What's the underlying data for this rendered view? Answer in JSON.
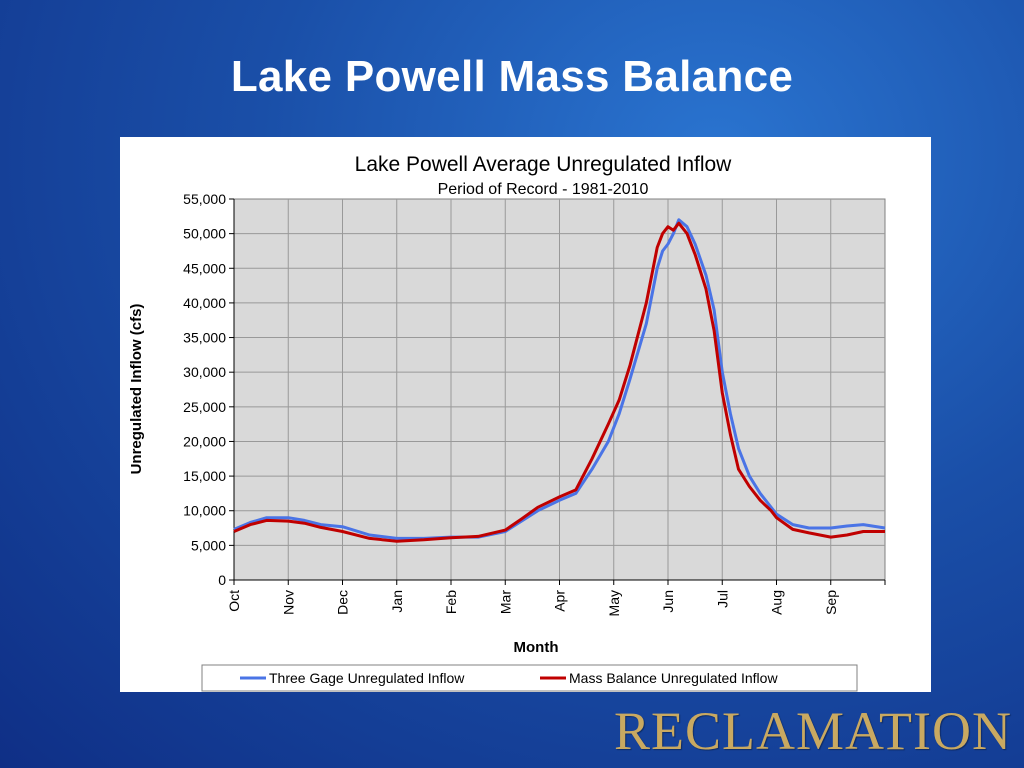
{
  "slide": {
    "title": "Lake Powell Mass Balance",
    "brand": "RECLAMATION"
  },
  "chart_data": {
    "type": "line",
    "title": "Lake Powell Average Unregulated Inflow",
    "subtitle": "Period of Record - 1981-2010",
    "xlabel": "Month",
    "ylabel": "Unregulated  Inflow (cfs)",
    "ylim": [
      0,
      55000
    ],
    "yticks": [
      0,
      5000,
      10000,
      15000,
      20000,
      25000,
      30000,
      35000,
      40000,
      45000,
      50000,
      55000
    ],
    "ytick_labels": [
      "0",
      "5,000",
      "10,000",
      "15,000",
      "20,000",
      "25,000",
      "30,000",
      "35,000",
      "40,000",
      "45,000",
      "50,000",
      "55,000"
    ],
    "categories": [
      "Oct",
      "Nov",
      "Dec",
      "Jan",
      "Feb",
      "Mar",
      "Apr",
      "May",
      "Jun",
      "Jul",
      "Aug",
      "Sep"
    ],
    "grid": true,
    "legend_position": "bottom",
    "colors": {
      "plot_bg": "#d9d9d9",
      "grid": "#999999"
    },
    "series": [
      {
        "name": "Three Gage Unregulated Inflow",
        "color": "#4a74e6",
        "x": [
          0,
          0.3,
          0.6,
          1.0,
          1.3,
          1.6,
          2.0,
          2.5,
          3.0,
          3.5,
          4.0,
          4.5,
          5.0,
          5.3,
          5.6,
          6.0,
          6.3,
          6.6,
          6.9,
          7.1,
          7.3,
          7.6,
          7.8,
          7.9,
          8.0,
          8.1,
          8.2,
          8.35,
          8.5,
          8.7,
          8.85,
          9.0,
          9.15,
          9.3,
          9.5,
          9.7,
          9.9,
          10.0,
          10.3,
          10.6,
          11.0,
          11.3,
          11.6,
          12.0
        ],
        "values": [
          7300,
          8300,
          9000,
          9000,
          8600,
          8000,
          7700,
          6500,
          6000,
          6000,
          6200,
          6200,
          7000,
          8500,
          10000,
          11500,
          12500,
          16000,
          20000,
          24000,
          29000,
          37000,
          45000,
          47500,
          48500,
          50000,
          52000,
          51000,
          48500,
          44000,
          39000,
          30000,
          24000,
          19000,
          15000,
          12500,
          10500,
          9500,
          8000,
          7500,
          7500,
          7800,
          8000,
          7500
        ]
      },
      {
        "name": "Mass Balance Unregulated  Inflow",
        "color": "#c00000",
        "x": [
          0,
          0.3,
          0.6,
          1.0,
          1.3,
          1.6,
          2.0,
          2.5,
          3.0,
          3.5,
          4.0,
          4.5,
          5.0,
          5.3,
          5.6,
          6.0,
          6.3,
          6.6,
          6.9,
          7.1,
          7.3,
          7.6,
          7.8,
          7.9,
          8.0,
          8.1,
          8.2,
          8.35,
          8.5,
          8.7,
          8.85,
          9.0,
          9.15,
          9.3,
          9.5,
          9.7,
          9.9,
          10.0,
          10.3,
          10.6,
          11.0,
          11.3,
          11.6,
          12.0
        ],
        "values": [
          7000,
          8000,
          8600,
          8500,
          8200,
          7600,
          7000,
          6000,
          5600,
          5800,
          6100,
          6300,
          7200,
          8800,
          10500,
          12000,
          13000,
          17500,
          22500,
          26000,
          31000,
          40000,
          48000,
          50000,
          51000,
          50500,
          51500,
          50000,
          47000,
          42000,
          36000,
          27000,
          21000,
          16000,
          13500,
          11500,
          10000,
          9000,
          7300,
          6800,
          6200,
          6500,
          7000,
          7000
        ]
      }
    ]
  }
}
